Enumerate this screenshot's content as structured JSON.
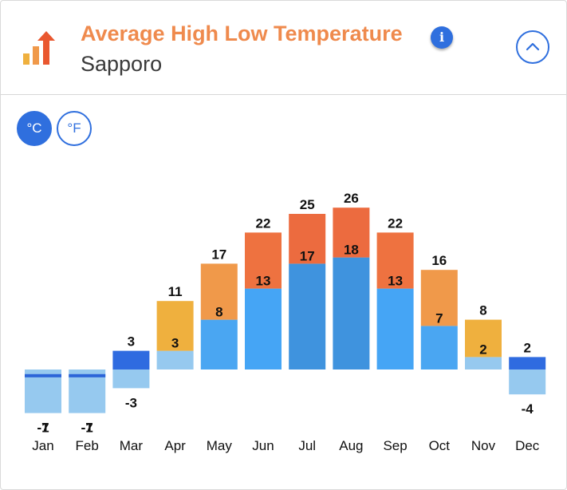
{
  "header": {
    "title": "Average High Low Temperature",
    "location": "Sapporo",
    "info_symbol": "i",
    "icon": "bar-chart-up-arrow-icon",
    "collapse_icon": "chevron-up-icon"
  },
  "units": {
    "celsius_label": "°C",
    "fahrenheit_label": "°F",
    "selected": "°C"
  },
  "colors": {
    "accent": "#2f6fde",
    "title": "#ef8a4d"
  },
  "chart_data": {
    "type": "bar",
    "title": "Average High Low Temperature",
    "subtitle": "Sapporo",
    "unit": "°C",
    "categories": [
      "Jan",
      "Feb",
      "Mar",
      "Apr",
      "May",
      "Jun",
      "Jul",
      "Aug",
      "Sep",
      "Oct",
      "Nov",
      "Dec"
    ],
    "series": [
      {
        "name": "High",
        "values": [
          -1,
          -1,
          3,
          11,
          17,
          22,
          25,
          26,
          22,
          16,
          8,
          2
        ]
      },
      {
        "name": "Low",
        "values": [
          -7,
          -7,
          -3,
          3,
          8,
          13,
          17,
          18,
          13,
          7,
          2,
          -4
        ]
      }
    ],
    "high_labels": [
      "-1",
      "-1",
      "3",
      "11",
      "17",
      "22",
      "25",
      "26",
      "22",
      "16",
      "8",
      "2"
    ],
    "low_labels": [
      "-7",
      "-7",
      "-3",
      "3",
      "8",
      "13",
      "17",
      "18",
      "13",
      "7",
      "2",
      "-4"
    ],
    "high_colors": [
      "#2b64d8",
      "#2b64d8",
      "#2f6be0",
      "#efb03e",
      "#f0994a",
      "#ee7240",
      "#ec6b3f",
      "#ec6b3f",
      "#ee7240",
      "#f0994a",
      "#efb03e",
      "#2f6be0"
    ],
    "low_colors": [
      "#96c9ef",
      "#96c9ef",
      "#96c9ef",
      "#96c9ef",
      "#4aa6f2",
      "#45a5f5",
      "#3f93de",
      "#3f93de",
      "#45a5f5",
      "#4aa6f2",
      "#96c9ef",
      "#96c9ef"
    ],
    "grid": false,
    "legend": "none"
  }
}
